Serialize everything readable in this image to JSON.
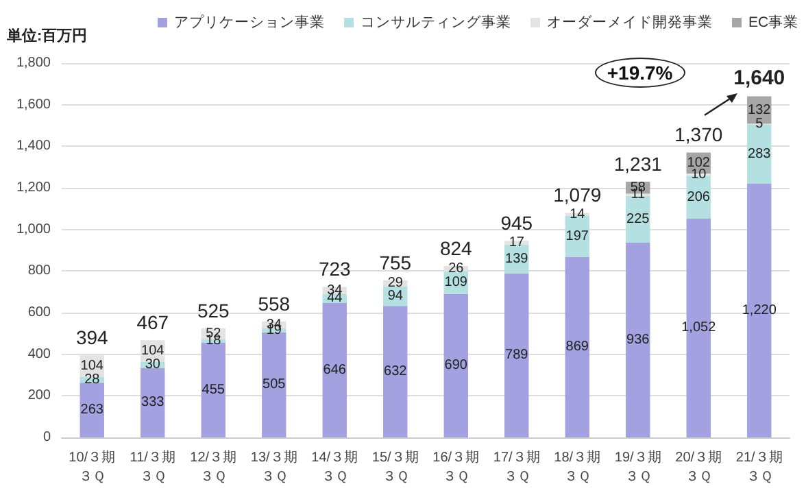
{
  "chart_data": {
    "type": "bar",
    "stacked": true,
    "ylabel": "単位:百万円",
    "categories": [
      "10/３期３Ｑ",
      "11/３期３Ｑ",
      "12/３期３Ｑ",
      "13/３期３Ｑ",
      "14/３期３Ｑ",
      "15/３期３Ｑ",
      "16/３期３Ｑ",
      "17/３期３Ｑ",
      "18/３期３Ｑ",
      "19/３期３Ｑ",
      "20/３期３Ｑ",
      "21/３期３Ｑ"
    ],
    "series": [
      {
        "name": "アプリケーション事業",
        "color": "#a3a1e0",
        "values": [
          263,
          333,
          455,
          505,
          646,
          632,
          690,
          789,
          869,
          936,
          1052,
          1220
        ],
        "value_labels": [
          "263",
          "333",
          "455",
          "505",
          "646",
          "632",
          "690",
          "789",
          "869",
          "936",
          "1,052",
          "1,220"
        ]
      },
      {
        "name": "コンサルティング事業",
        "color": "#b5e0e2",
        "values": [
          28,
          30,
          18,
          19,
          44,
          94,
          109,
          139,
          197,
          225,
          206,
          283
        ],
        "value_labels": [
          "28",
          "30",
          "18",
          "19",
          "44",
          "94",
          "109",
          "139",
          "197",
          "225",
          "206",
          "283"
        ]
      },
      {
        "name": "オーダーメイド開発事業",
        "color": "#e3e3e3",
        "values": [
          104,
          104,
          52,
          34,
          34,
          29,
          26,
          17,
          14,
          11,
          10,
          5
        ],
        "value_labels": [
          "104",
          "104",
          "52",
          "34",
          "34",
          "29",
          "26",
          "17",
          "14",
          "11",
          "10",
          "5"
        ]
      },
      {
        "name": "EC事業",
        "color": "#a6a6a6",
        "values": [
          null,
          null,
          null,
          null,
          null,
          null,
          null,
          null,
          null,
          58,
          102,
          132
        ],
        "value_labels": [
          null,
          null,
          null,
          null,
          null,
          null,
          null,
          null,
          null,
          "58",
          "102",
          "132"
        ]
      }
    ],
    "totals": [
      "394",
      "467",
      "525",
      "558",
      "723",
      "755",
      "824",
      "945",
      "1,079",
      "1,231",
      "1,370",
      "1,640"
    ],
    "annotations": [
      "+19.7%"
    ],
    "ylim": [
      0,
      1800
    ],
    "yticks": [
      0,
      200,
      400,
      600,
      800,
      {
        "value": 1000,
        "label": "1,000"
      },
      {
        "value": 1200,
        "label": "1,200"
      },
      {
        "value": 1400,
        "label": "1,400"
      },
      {
        "value": 1600,
        "label": "1,600"
      },
      {
        "value": 1800,
        "label": "1,800"
      }
    ],
    "grid": "y",
    "legend": "top"
  }
}
